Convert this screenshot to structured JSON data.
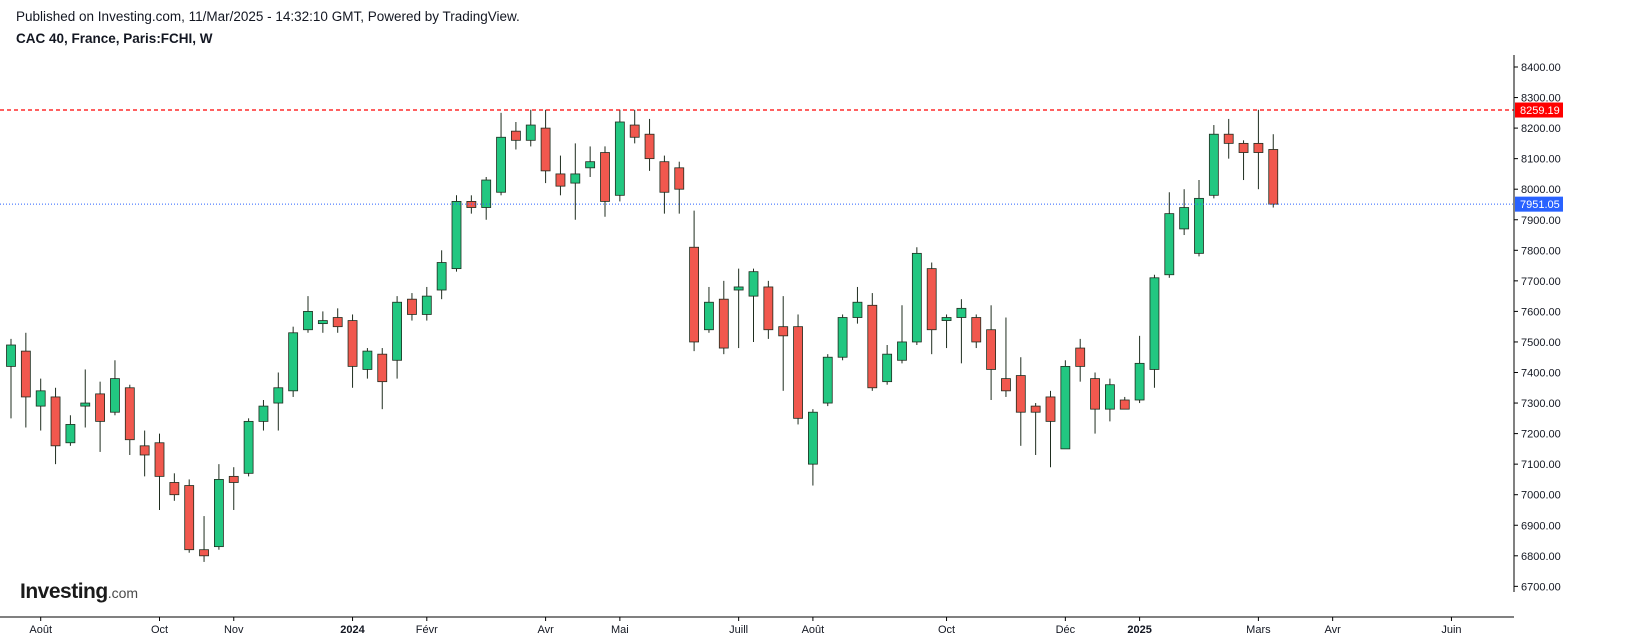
{
  "header": {
    "published": "Published on Investing.com, 11/Mar/2025 - 14:32:10 GMT, Powered by TradingView.",
    "symbol": "CAC 40, France, Paris:FCHI, W"
  },
  "logo": {
    "main": "Investing",
    "domain": ".com"
  },
  "colors": {
    "up": "#22c781",
    "down": "#f1584e",
    "resistance": "#ff0000",
    "last": "#2962ff",
    "wick": "#1f2d1f"
  },
  "chart_data": {
    "type": "candlestick",
    "title": "CAC 40, France, Paris:FCHI, W",
    "xlabel": "",
    "ylabel": "",
    "ylim": [
      6670,
      8450
    ],
    "yticks": [
      6700,
      6800,
      6900,
      7000,
      7100,
      7200,
      7300,
      7400,
      7500,
      7600,
      7700,
      7800,
      7900,
      8000,
      8100,
      8200,
      8300,
      8400
    ],
    "ytick_labels": [
      "6700.00",
      "6800.00",
      "6900.00",
      "7000.00",
      "7100.00",
      "7200.00",
      "7300.00",
      "7400.00",
      "7500.00",
      "7600.00",
      "7700.00",
      "7800.00",
      "7900.00",
      "8000.00",
      "8100.00",
      "8200.00",
      "8300.00",
      "8400.00"
    ],
    "xticks": [
      {
        "label": "Août",
        "index": 2
      },
      {
        "label": "Oct",
        "index": 10
      },
      {
        "label": "Nov",
        "index": 15
      },
      {
        "label": "2024",
        "index": 23
      },
      {
        "label": "Févr",
        "index": 28
      },
      {
        "label": "Avr",
        "index": 36
      },
      {
        "label": "Mai",
        "index": 41
      },
      {
        "label": "Juill",
        "index": 49
      },
      {
        "label": "Août",
        "index": 54
      },
      {
        "label": "Oct",
        "index": 63
      },
      {
        "label": "Déc",
        "index": 71
      },
      {
        "label": "2025",
        "index": 76
      },
      {
        "label": "Mars",
        "index": 84
      },
      {
        "label": "Avr",
        "index": 89
      },
      {
        "label": "Juin",
        "index": 97
      }
    ],
    "resistance_level": 8259.19,
    "resistance_label": "8259.19",
    "last_price": 7951.05,
    "last_price_label": "7951.05",
    "grid": false,
    "candles": [
      {
        "o": 7420,
        "h": 7510,
        "l": 7250,
        "c": 7490
      },
      {
        "o": 7470,
        "h": 7530,
        "l": 7220,
        "c": 7320
      },
      {
        "o": 7290,
        "h": 7380,
        "l": 7210,
        "c": 7340
      },
      {
        "o": 7320,
        "h": 7350,
        "l": 7100,
        "c": 7160
      },
      {
        "o": 7170,
        "h": 7260,
        "l": 7160,
        "c": 7230
      },
      {
        "o": 7290,
        "h": 7410,
        "l": 7220,
        "c": 7300
      },
      {
        "o": 7330,
        "h": 7370,
        "l": 7140,
        "c": 7240
      },
      {
        "o": 7270,
        "h": 7440,
        "l": 7260,
        "c": 7380
      },
      {
        "o": 7350,
        "h": 7360,
        "l": 7130,
        "c": 7180
      },
      {
        "o": 7160,
        "h": 7210,
        "l": 7060,
        "c": 7130
      },
      {
        "o": 7170,
        "h": 7200,
        "l": 6950,
        "c": 7060
      },
      {
        "o": 7040,
        "h": 7070,
        "l": 6980,
        "c": 7000
      },
      {
        "o": 7030,
        "h": 7050,
        "l": 6810,
        "c": 6820
      },
      {
        "o": 6820,
        "h": 6930,
        "l": 6780,
        "c": 6800
      },
      {
        "o": 6830,
        "h": 7100,
        "l": 6820,
        "c": 7050
      },
      {
        "o": 7060,
        "h": 7090,
        "l": 6950,
        "c": 7040
      },
      {
        "o": 7070,
        "h": 7250,
        "l": 7060,
        "c": 7240
      },
      {
        "o": 7240,
        "h": 7310,
        "l": 7210,
        "c": 7290
      },
      {
        "o": 7300,
        "h": 7400,
        "l": 7210,
        "c": 7350
      },
      {
        "o": 7340,
        "h": 7550,
        "l": 7320,
        "c": 7530
      },
      {
        "o": 7540,
        "h": 7650,
        "l": 7530,
        "c": 7600
      },
      {
        "o": 7560,
        "h": 7600,
        "l": 7530,
        "c": 7570
      },
      {
        "o": 7580,
        "h": 7610,
        "l": 7530,
        "c": 7550
      },
      {
        "o": 7570,
        "h": 7590,
        "l": 7350,
        "c": 7420
      },
      {
        "o": 7410,
        "h": 7480,
        "l": 7380,
        "c": 7470
      },
      {
        "o": 7460,
        "h": 7480,
        "l": 7280,
        "c": 7370
      },
      {
        "o": 7440,
        "h": 7650,
        "l": 7380,
        "c": 7630
      },
      {
        "o": 7640,
        "h": 7660,
        "l": 7570,
        "c": 7590
      },
      {
        "o": 7590,
        "h": 7680,
        "l": 7570,
        "c": 7650
      },
      {
        "o": 7670,
        "h": 7800,
        "l": 7640,
        "c": 7760
      },
      {
        "o": 7740,
        "h": 7980,
        "l": 7730,
        "c": 7960
      },
      {
        "o": 7960,
        "h": 7980,
        "l": 7920,
        "c": 7940
      },
      {
        "o": 7940,
        "h": 8040,
        "l": 7900,
        "c": 8030
      },
      {
        "o": 7990,
        "h": 8250,
        "l": 7980,
        "c": 8170
      },
      {
        "o": 8190,
        "h": 8220,
        "l": 8130,
        "c": 8160
      },
      {
        "o": 8160,
        "h": 8260,
        "l": 8140,
        "c": 8210
      },
      {
        "o": 8200,
        "h": 8260,
        "l": 8020,
        "c": 8060
      },
      {
        "o": 8050,
        "h": 8110,
        "l": 7980,
        "c": 8010
      },
      {
        "o": 8020,
        "h": 8150,
        "l": 7900,
        "c": 8050
      },
      {
        "o": 8070,
        "h": 8140,
        "l": 8040,
        "c": 8090
      },
      {
        "o": 8120,
        "h": 8140,
        "l": 7910,
        "c": 7960
      },
      {
        "o": 7980,
        "h": 8260,
        "l": 7960,
        "c": 8220
      },
      {
        "o": 8210,
        "h": 8260,
        "l": 8150,
        "c": 8170
      },
      {
        "o": 8180,
        "h": 8230,
        "l": 8060,
        "c": 8100
      },
      {
        "o": 8090,
        "h": 8110,
        "l": 7920,
        "c": 7990
      },
      {
        "o": 8070,
        "h": 8090,
        "l": 7920,
        "c": 8000
      },
      {
        "o": 7810,
        "h": 7930,
        "l": 7470,
        "c": 7500
      },
      {
        "o": 7540,
        "h": 7680,
        "l": 7530,
        "c": 7630
      },
      {
        "o": 7640,
        "h": 7700,
        "l": 7460,
        "c": 7480
      },
      {
        "o": 7670,
        "h": 7740,
        "l": 7480,
        "c": 7680
      },
      {
        "o": 7650,
        "h": 7740,
        "l": 7500,
        "c": 7730
      },
      {
        "o": 7680,
        "h": 7700,
        "l": 7510,
        "c": 7540
      },
      {
        "o": 7550,
        "h": 7650,
        "l": 7340,
        "c": 7520
      },
      {
        "o": 7550,
        "h": 7590,
        "l": 7230,
        "c": 7250
      },
      {
        "o": 7100,
        "h": 7280,
        "l": 7030,
        "c": 7270
      },
      {
        "o": 7300,
        "h": 7460,
        "l": 7290,
        "c": 7450
      },
      {
        "o": 7450,
        "h": 7590,
        "l": 7440,
        "c": 7580
      },
      {
        "o": 7580,
        "h": 7680,
        "l": 7560,
        "c": 7630
      },
      {
        "o": 7620,
        "h": 7660,
        "l": 7340,
        "c": 7350
      },
      {
        "o": 7370,
        "h": 7490,
        "l": 7360,
        "c": 7460
      },
      {
        "o": 7440,
        "h": 7620,
        "l": 7430,
        "c": 7500
      },
      {
        "o": 7500,
        "h": 7810,
        "l": 7490,
        "c": 7790
      },
      {
        "o": 7740,
        "h": 7760,
        "l": 7460,
        "c": 7540
      },
      {
        "o": 7570,
        "h": 7590,
        "l": 7480,
        "c": 7580
      },
      {
        "o": 7580,
        "h": 7640,
        "l": 7430,
        "c": 7610
      },
      {
        "o": 7580,
        "h": 7590,
        "l": 7480,
        "c": 7500
      },
      {
        "o": 7540,
        "h": 7620,
        "l": 7310,
        "c": 7410
      },
      {
        "o": 7380,
        "h": 7580,
        "l": 7320,
        "c": 7340
      },
      {
        "o": 7390,
        "h": 7450,
        "l": 7160,
        "c": 7270
      },
      {
        "o": 7290,
        "h": 7300,
        "l": 7130,
        "c": 7270
      },
      {
        "o": 7320,
        "h": 7340,
        "l": 7090,
        "c": 7240
      },
      {
        "o": 7150,
        "h": 7440,
        "l": 7150,
        "c": 7420
      },
      {
        "o": 7480,
        "h": 7510,
        "l": 7370,
        "c": 7420
      },
      {
        "o": 7380,
        "h": 7400,
        "l": 7200,
        "c": 7280
      },
      {
        "o": 7280,
        "h": 7380,
        "l": 7240,
        "c": 7360
      },
      {
        "o": 7310,
        "h": 7320,
        "l": 7280,
        "c": 7280
      },
      {
        "o": 7310,
        "h": 7520,
        "l": 7300,
        "c": 7430
      },
      {
        "o": 7410,
        "h": 7720,
        "l": 7350,
        "c": 7710
      },
      {
        "o": 7720,
        "h": 7990,
        "l": 7710,
        "c": 7920
      },
      {
        "o": 7870,
        "h": 8000,
        "l": 7850,
        "c": 7940
      },
      {
        "o": 7790,
        "h": 8030,
        "l": 7780,
        "c": 7970
      },
      {
        "o": 7980,
        "h": 8210,
        "l": 7970,
        "c": 8180
      },
      {
        "o": 8180,
        "h": 8230,
        "l": 8100,
        "c": 8150
      },
      {
        "o": 8150,
        "h": 8160,
        "l": 8030,
        "c": 8120
      },
      {
        "o": 8150,
        "h": 8260,
        "l": 8000,
        "c": 8120
      },
      {
        "o": 8130,
        "h": 8180,
        "l": 7940,
        "c": 7951.05
      }
    ]
  }
}
